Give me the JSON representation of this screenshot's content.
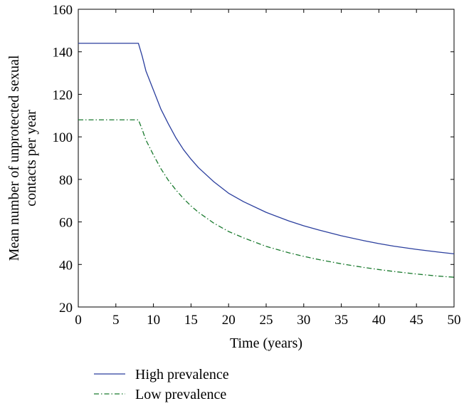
{
  "chart_data": {
    "type": "line",
    "title": "",
    "xlabel": "Time (years)",
    "ylabel_lines": [
      "Mean number of unprotected sexual",
      "contacts per year"
    ],
    "xlim": [
      0,
      50
    ],
    "ylim": [
      20,
      160
    ],
    "x_ticks": [
      0,
      5,
      10,
      15,
      20,
      25,
      30,
      35,
      40,
      45,
      50
    ],
    "y_ticks": [
      20,
      40,
      60,
      80,
      100,
      120,
      140,
      160
    ],
    "grid": false,
    "legend_position": "bottom-left below plot",
    "x": [
      0,
      8,
      8.5,
      9,
      10,
      11,
      12,
      13,
      14,
      15,
      16,
      18,
      20,
      22,
      25,
      28,
      30,
      32,
      35,
      38,
      40,
      42,
      45,
      48,
      50
    ],
    "series": [
      {
        "name": "High prevalence",
        "color": "#2b3f9e",
        "style": "solid",
        "values": [
          144,
          144,
          138,
          131,
          122,
          113,
          106,
          99.5,
          94,
          89.5,
          85.5,
          79,
          73.5,
          69.5,
          64.5,
          60.5,
          58.2,
          56.2,
          53.5,
          51.2,
          49.8,
          48.6,
          47.1,
          45.8,
          45
        ]
      },
      {
        "name": "Low prevalence",
        "color": "#1a7a2e",
        "style": "dashdot",
        "values": [
          108,
          108,
          103.5,
          98.5,
          91.5,
          85,
          79.5,
          75,
          71,
          67.5,
          64.5,
          59.5,
          55.5,
          52.5,
          48.5,
          45.5,
          43.8,
          42.3,
          40.3,
          38.6,
          37.6,
          36.7,
          35.5,
          34.5,
          34
        ]
      }
    ]
  }
}
